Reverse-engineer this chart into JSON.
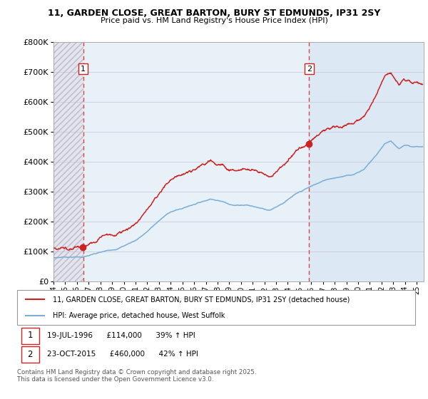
{
  "title_line1": "11, GARDEN CLOSE, GREAT BARTON, BURY ST EDMUNDS, IP31 2SY",
  "title_line2": "Price paid vs. HM Land Registry's House Price Index (HPI)",
  "ylim": [
    0,
    800000
  ],
  "yticks": [
    0,
    100000,
    200000,
    300000,
    400000,
    500000,
    600000,
    700000,
    800000
  ],
  "ytick_labels": [
    "£0",
    "£100K",
    "£200K",
    "£300K",
    "£400K",
    "£500K",
    "£600K",
    "£700K",
    "£800K"
  ],
  "sale1_year": 1996.54,
  "sale1_price": 114000,
  "sale2_year": 2015.81,
  "sale2_price": 460000,
  "hpi_color": "#7aaed6",
  "price_color": "#cc2222",
  "dashed_color": "#dd4444",
  "legend_line1": "11, GARDEN CLOSE, GREAT BARTON, BURY ST EDMUNDS, IP31 2SY (detached house)",
  "legend_line2": "HPI: Average price, detached house, West Suffolk",
  "ann1_text": "19-JUL-1996      £114,000      39% ↑ HPI",
  "ann2_text": "23-OCT-2015      £460,000      42% ↑ HPI",
  "footer": "Contains HM Land Registry data © Crown copyright and database right 2025.\nThis data is licensed under the Open Government Licence v3.0.",
  "hatch_color": "#c8c8d8",
  "bg_mid_color": "#e8f0f8",
  "bg_right_color": "#dce8f4"
}
